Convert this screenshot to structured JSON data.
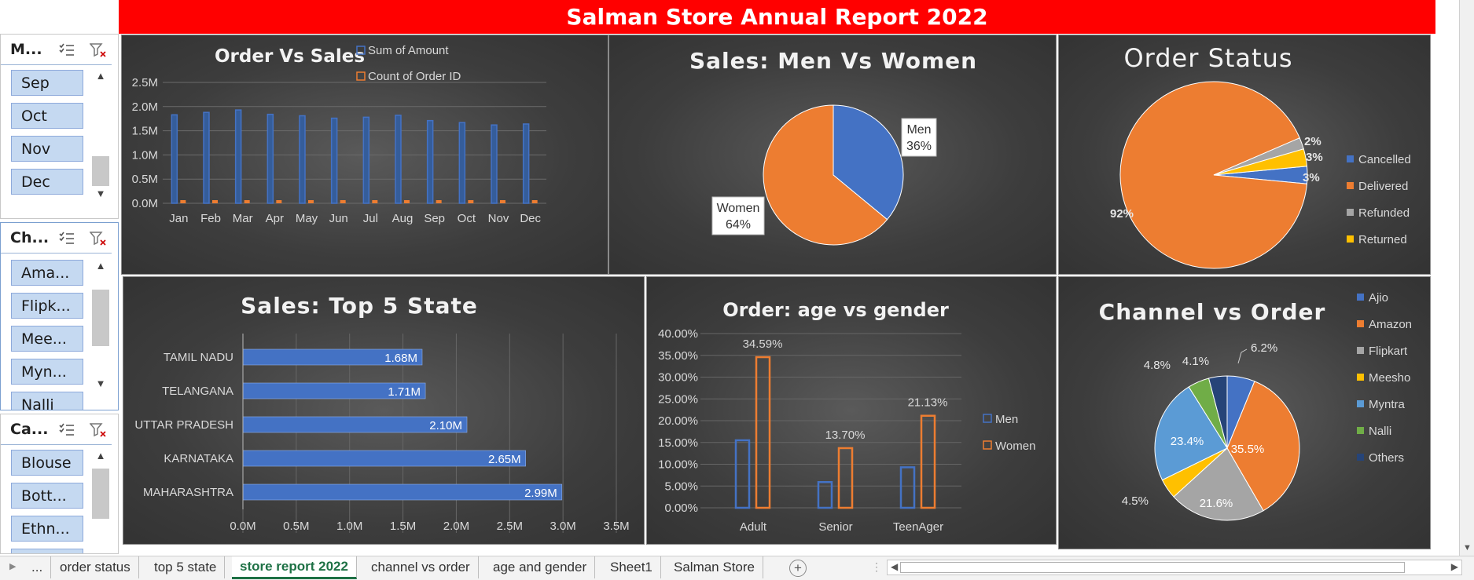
{
  "report_title": "Salman Store Annual Report 2022",
  "slicers": [
    {
      "title": "M...",
      "items": [
        "Sep",
        "Oct",
        "Nov",
        "Dec"
      ]
    },
    {
      "title": "Ch...",
      "items": [
        "Ama...",
        "Flipk...",
        "Mee...",
        "Myn...",
        "Nalli"
      ]
    },
    {
      "title": "Ca...",
      "items": [
        "Blouse",
        "Bott...",
        "Ethn...",
        ""
      ]
    }
  ],
  "sheet_tabs": {
    "ellipsis": "...",
    "items": [
      "order status",
      "top 5 state",
      "store report 2022",
      "channel vs order",
      "age and gender",
      "Sheet1",
      "Salman Store"
    ],
    "active": "store report 2022",
    "add": "+"
  },
  "colors": {
    "blue": "#4472c4",
    "orange": "#ed7d31",
    "gray": "#a5a5a5",
    "yellow": "#ffc000",
    "lightblue": "#5b9bd5",
    "green": "#70ad47",
    "navy": "#264478",
    "banner": "#ff0000"
  },
  "chart_data": [
    {
      "id": "order_vs_sales",
      "type": "bar",
      "title": "Order Vs Sales",
      "categories": [
        "Jan",
        "Feb",
        "Mar",
        "Apr",
        "May",
        "Jun",
        "Jul",
        "Aug",
        "Sep",
        "Oct",
        "Nov",
        "Dec"
      ],
      "series": [
        {
          "name": "Sum of Amount",
          "values": [
            1.83,
            1.88,
            1.93,
            1.84,
            1.81,
            1.76,
            1.78,
            1.82,
            1.71,
            1.67,
            1.62,
            1.64
          ],
          "color": "#4472c4"
        },
        {
          "name": "Count of Order ID",
          "values": [
            0.0105,
            0.0107,
            0.011,
            0.0105,
            0.0103,
            0.01,
            0.0101,
            0.0104,
            0.0097,
            0.0095,
            0.0092,
            0.0093
          ],
          "color": "#ed7d31"
        }
      ],
      "yticks": [
        "0.0M",
        "0.5M",
        "1.0M",
        "1.5M",
        "2.0M",
        "2.5M"
      ],
      "ylim": [
        0,
        2.5
      ],
      "grid": true,
      "legend": "top"
    },
    {
      "id": "men_vs_women",
      "type": "pie",
      "title": "Sales: Men Vs Women",
      "slices": [
        {
          "label": "Men",
          "value": 36,
          "display": "36%",
          "color": "#4472c4"
        },
        {
          "label": "Women",
          "value": 64,
          "display": "64%",
          "color": "#ed7d31"
        }
      ]
    },
    {
      "id": "order_status",
      "type": "pie",
      "title": "Order Status",
      "slices": [
        {
          "label": "Cancelled",
          "value": 3,
          "display": "3%",
          "color": "#4472c4"
        },
        {
          "label": "Delivered",
          "value": 92,
          "display": "92%",
          "color": "#ed7d31"
        },
        {
          "label": "Refunded",
          "value": 2,
          "display": "2%",
          "color": "#a5a5a5"
        },
        {
          "label": "Returned",
          "value": 3,
          "display": "3%",
          "color": "#ffc000"
        }
      ],
      "legend": "right"
    },
    {
      "id": "top5_state",
      "type": "bar",
      "orientation": "horizontal",
      "title": "Sales: Top 5 State",
      "categories": [
        "TAMIL NADU",
        "TELANGANA",
        "UTTAR PRADESH",
        "KARNATAKA",
        "MAHARASHTRA"
      ],
      "values": [
        1.68,
        1.71,
        2.1,
        2.65,
        2.99
      ],
      "labels": [
        "1.68M",
        "1.71M",
        "2.10M",
        "2.65M",
        "2.99M"
      ],
      "xticks": [
        "0.0M",
        "0.5M",
        "1.0M",
        "1.5M",
        "2.0M",
        "2.5M",
        "3.0M",
        "3.5M"
      ],
      "xlim": [
        0,
        3.5
      ],
      "grid": true
    },
    {
      "id": "age_vs_gender",
      "type": "bar",
      "title": "Order:  age vs gender",
      "categories": [
        "Adult",
        "Senior",
        "TeenAger"
      ],
      "series": [
        {
          "name": "Men",
          "values": [
            15.5,
            5.9,
            9.3
          ],
          "color": "#4472c4"
        },
        {
          "name": "Women",
          "values": [
            34.59,
            13.7,
            21.13
          ],
          "labels": [
            "34.59%",
            "13.70%",
            "21.13%"
          ],
          "color": "#ed7d31"
        }
      ],
      "yticks": [
        "0.00%",
        "5.00%",
        "10.00%",
        "15.00%",
        "20.00%",
        "25.00%",
        "30.00%",
        "35.00%",
        "40.00%"
      ],
      "ylim": [
        0,
        40
      ],
      "grid": true,
      "legend": "right"
    },
    {
      "id": "channel_vs_order",
      "type": "pie",
      "title": "Channel vs Order",
      "slices": [
        {
          "label": "Ajio",
          "value": 6.2,
          "display": "6.2%",
          "color": "#4472c4"
        },
        {
          "label": "Amazon",
          "value": 35.5,
          "display": "35.5%",
          "color": "#ed7d31"
        },
        {
          "label": "Flipkart",
          "value": 21.6,
          "display": "21.6%",
          "color": "#a5a5a5"
        },
        {
          "label": "Meesho",
          "value": 4.5,
          "display": "4.5%",
          "color": "#ffc000"
        },
        {
          "label": "Myntra",
          "value": 23.4,
          "display": "23.4%",
          "color": "#5b9bd5"
        },
        {
          "label": "Nalli",
          "value": 4.8,
          "display": "4.8%",
          "color": "#70ad47"
        },
        {
          "label": "Others",
          "value": 4.1,
          "display": "4.1%",
          "color": "#264478"
        }
      ],
      "legend": "right"
    }
  ]
}
